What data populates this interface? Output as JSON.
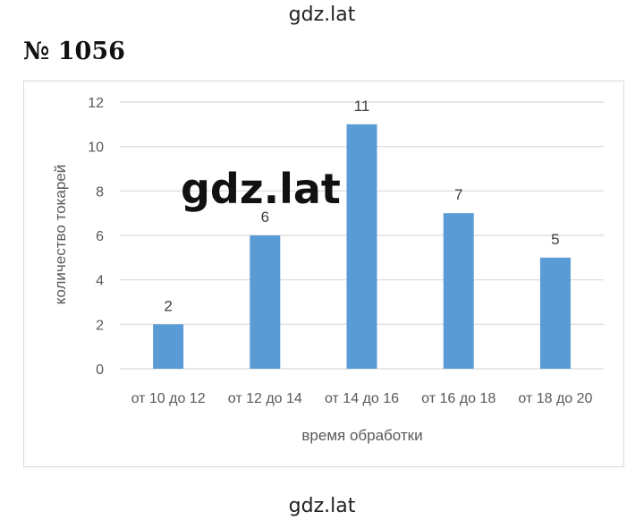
{
  "watermark": "gdz.lat",
  "problem_number": "№ 1056",
  "chart_data": {
    "type": "bar",
    "categories": [
      "от 10 до 12",
      "от 12 до 14",
      "от 14 до 16",
      "от 16 до 18",
      "от 18 до 20"
    ],
    "values": [
      2,
      6,
      11,
      7,
      5
    ],
    "data_labels": [
      "2",
      "6",
      "11",
      "7",
      "5"
    ],
    "xlabel": "время обработки",
    "ylabel": "количество токарей",
    "ylim": [
      0,
      12
    ],
    "yticks": [
      "0",
      "2",
      "4",
      "6",
      "8",
      "10",
      "12"
    ],
    "grid": true,
    "legend": "none",
    "bar_color": "#5b9bd5",
    "grid_color": "#d9d9d9"
  }
}
